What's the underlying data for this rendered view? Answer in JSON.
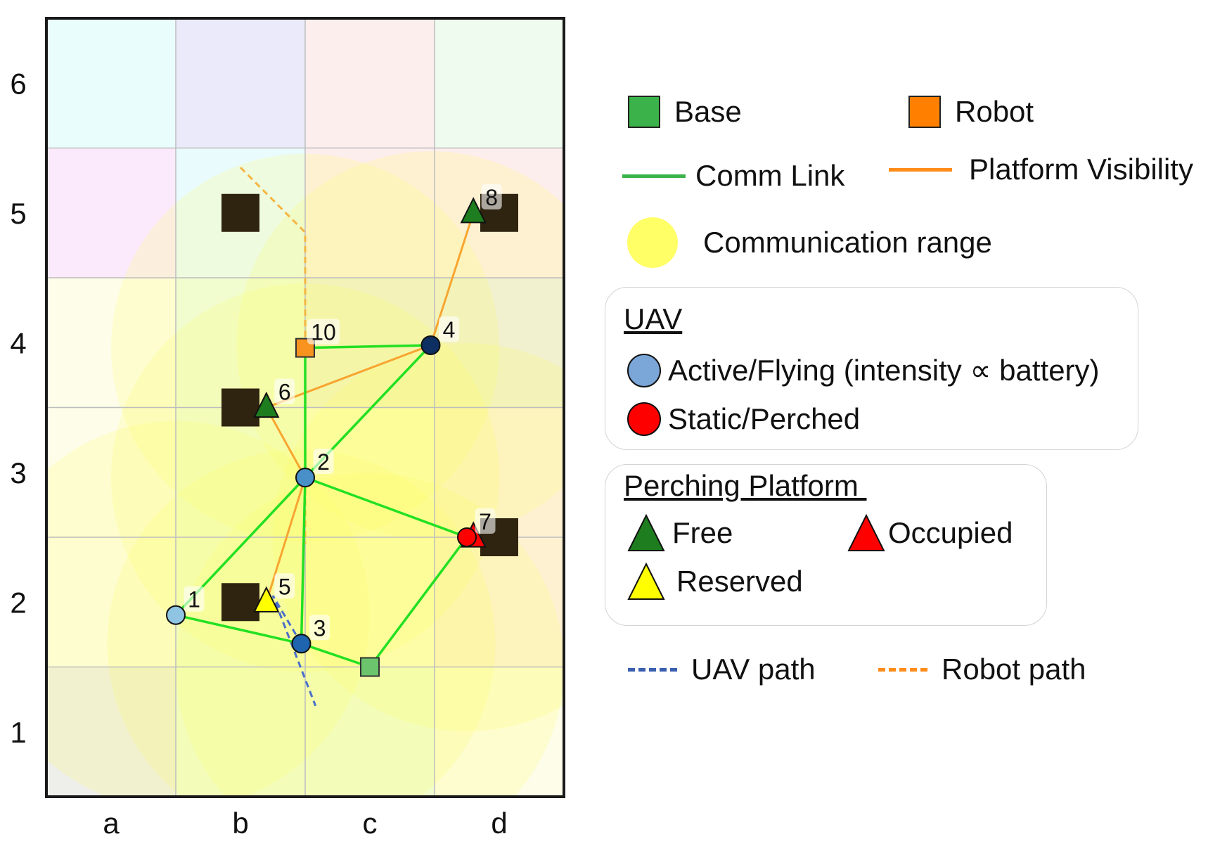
{
  "map": {
    "x_labels": [
      "a",
      "b",
      "c",
      "d"
    ],
    "y_labels": [
      "1",
      "2",
      "3",
      "4",
      "5",
      "6"
    ],
    "colors": {
      "comm_link": "#22e022",
      "visibility_link": "#f7a531",
      "uav_path": "#4a6fc9",
      "robot_path": "#f5b545",
      "base": "#6cc46c",
      "robot": "#f7931e",
      "structure": "#2e2410",
      "comm_range": "#ffff66"
    },
    "structures": [
      {
        "x": 1.5,
        "y": 5.0
      },
      {
        "x": 3.5,
        "y": 5.0
      },
      {
        "x": 1.5,
        "y": 3.5
      },
      {
        "x": 3.5,
        "y": 2.5
      },
      {
        "x": 1.5,
        "y": 2.0
      }
    ],
    "nodes": [
      {
        "id": "1",
        "kind": "uav",
        "state": "active",
        "x": 1.0,
        "y": 1.9,
        "color": "#8fc4e3"
      },
      {
        "id": "2",
        "kind": "uav",
        "state": "active",
        "x": 2.0,
        "y": 2.96,
        "color": "#4a90c8"
      },
      {
        "id": "3",
        "kind": "uav",
        "state": "active",
        "x": 1.97,
        "y": 1.68,
        "color": "#1f64ae"
      },
      {
        "id": "4",
        "kind": "uav",
        "state": "active",
        "x": 2.97,
        "y": 3.98,
        "color": "#0d2f62"
      },
      {
        "id": "5",
        "kind": "platform",
        "state": "reserved",
        "x": 1.7,
        "y": 2.0,
        "color": "#ffff00"
      },
      {
        "id": "6",
        "kind": "platform",
        "state": "free",
        "x": 1.7,
        "y": 3.5,
        "color": "#1e7d1e"
      },
      {
        "id": "7",
        "kind": "platform",
        "state": "occupied",
        "x": 3.3,
        "y": 2.5,
        "color": "#ff0000"
      },
      {
        "id": "7b",
        "kind": "uav",
        "state": "perched",
        "x": 3.25,
        "y": 2.5,
        "color": "#ff0000"
      },
      {
        "id": "8",
        "kind": "platform",
        "state": "free",
        "x": 3.3,
        "y": 5.0,
        "color": "#1e7d1e"
      },
      {
        "id": "10",
        "kind": "robot",
        "state": "",
        "x": 2.0,
        "y": 3.96,
        "color": "#f7931e"
      },
      {
        "id": "base",
        "kind": "base",
        "state": "",
        "x": 2.5,
        "y": 1.5,
        "color": "#6cc46c"
      }
    ],
    "labels": [
      "1",
      "2",
      "3",
      "4",
      "5",
      "6",
      "7",
      "8",
      "10"
    ],
    "comm_links": [
      [
        "1",
        "2"
      ],
      [
        "1",
        "3"
      ],
      [
        "2",
        "3"
      ],
      [
        "2",
        "4"
      ],
      [
        "10",
        "4"
      ],
      [
        "10",
        "2"
      ],
      [
        "2",
        "7b"
      ],
      [
        "3",
        "base"
      ],
      [
        "base",
        "7b"
      ]
    ],
    "visibility_links": [
      [
        "4",
        "8"
      ],
      [
        "4",
        "6"
      ],
      [
        "6",
        "2"
      ],
      [
        "2",
        "5"
      ]
    ],
    "comm_ranges": [
      {
        "x": 1.0,
        "y": 1.9,
        "r": 1.5
      },
      {
        "x": 2.0,
        "y": 2.96,
        "r": 1.5
      },
      {
        "x": 1.97,
        "y": 1.68,
        "r": 1.5
      },
      {
        "x": 2.97,
        "y": 3.98,
        "r": 1.5
      },
      {
        "x": 2.5,
        "y": 1.5,
        "r": 1.5
      },
      {
        "x": 3.25,
        "y": 2.5,
        "r": 1.5
      },
      {
        "x": 2.0,
        "y": 3.96,
        "r": 1.5
      }
    ],
    "uav_path": [
      [
        1.97,
        1.68
      ],
      [
        1.75,
        2.05
      ],
      [
        2.08,
        1.2
      ]
    ],
    "robot_path": [
      [
        1.5,
        5.35
      ],
      [
        2.0,
        4.85
      ],
      [
        2.0,
        2.45
      ]
    ]
  },
  "legend": {
    "base": "Base",
    "robot": "Robot",
    "comm_link": "Comm Link",
    "platform_visibility": "Platform Visibility",
    "communication_range": "Communication range",
    "uav_title": "UAV",
    "active_flying": "Active/Flying (intensity ∝ battery)",
    "static_perched": "Static/Perched",
    "platform_title": "Perching Platform ",
    "free": "Free",
    "occupied": "Occupied",
    "reserved": "Reserved",
    "uav_path": "UAV path",
    "robot_path": "Robot path",
    "colors": {
      "base": "#3cb34a",
      "robot": "#ff8000",
      "comm_link": "#3cb34a",
      "platform_visibility": "#ff8c1a",
      "communication_range": "#ffff66",
      "active_flying": "#7ba6d8",
      "static_perched": "#ff0000",
      "free": "#1e7d1e",
      "occupied": "#ff0000",
      "reserved": "#ffff00",
      "uav_path": "#3a5fb0",
      "robot_path": "#ff8c1a"
    }
  }
}
